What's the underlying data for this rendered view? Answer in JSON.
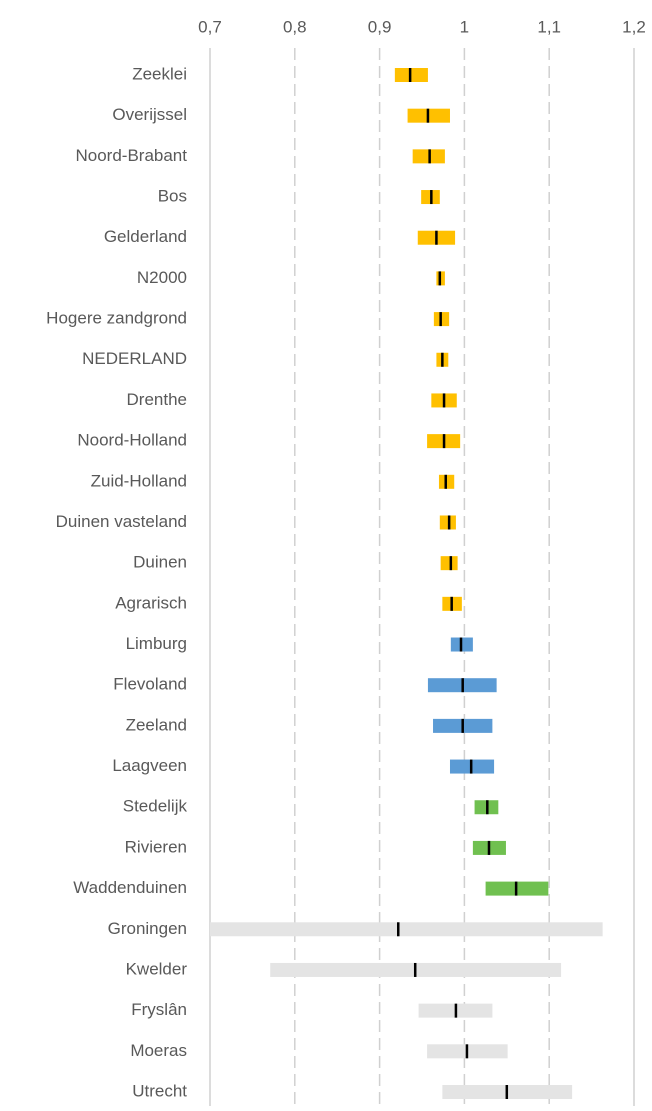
{
  "chart_data": {
    "type": "interval",
    "categories": [
      "Zeeklei",
      "Overijssel",
      "Noord-Brabant",
      "Bos",
      "Gelderland",
      "N2000",
      "Hogere zandgrond",
      "NEDERLAND",
      "Drenthe",
      "Noord-Holland",
      "Zuid-Holland",
      "Duinen vasteland",
      "Duinen",
      "Agrarisch",
      "Limburg",
      "Flevoland",
      "Zeeland",
      "Laagveen",
      "Stedelijk",
      "Rivieren",
      "Waddenduinen",
      "Groningen",
      "Kwelder",
      "Fryslân",
      "Moeras",
      "Utrecht"
    ],
    "values": [
      0.936,
      0.957,
      0.959,
      0.961,
      0.967,
      0.971,
      0.972,
      0.974,
      0.976,
      0.976,
      0.978,
      0.982,
      0.984,
      0.985,
      0.996,
      0.998,
      0.998,
      1.008,
      1.027,
      1.029,
      1.061,
      0.922,
      0.942,
      0.99,
      1.003,
      1.05
    ],
    "low": [
      0.918,
      0.933,
      0.939,
      0.949,
      0.945,
      0.967,
      0.964,
      0.967,
      0.961,
      0.956,
      0.97,
      0.971,
      0.972,
      0.974,
      0.984,
      0.957,
      0.963,
      0.983,
      1.012,
      1.01,
      1.025,
      0.7,
      0.771,
      0.946,
      0.956,
      0.974
    ],
    "high": [
      0.957,
      0.983,
      0.977,
      0.971,
      0.989,
      0.977,
      0.982,
      0.981,
      0.991,
      0.995,
      0.988,
      0.99,
      0.992,
      0.997,
      1.01,
      1.038,
      1.033,
      1.035,
      1.04,
      1.049,
      1.099,
      1.163,
      1.114,
      1.033,
      1.051,
      1.127
    ],
    "colors": [
      "#ffc000",
      "#ffc000",
      "#ffc000",
      "#ffc000",
      "#ffc000",
      "#ffc000",
      "#ffc000",
      "#ffc000",
      "#ffc000",
      "#ffc000",
      "#ffc000",
      "#ffc000",
      "#ffc000",
      "#ffc000",
      "#5b9bd5",
      "#5b9bd5",
      "#5b9bd5",
      "#5b9bd5",
      "#70c050",
      "#70c050",
      "#70c050",
      "#e4e4e4",
      "#e4e4e4",
      "#e4e4e4",
      "#e4e4e4",
      "#e4e4e4"
    ],
    "estimate_color": "#000000",
    "xlim": [
      0.7,
      1.2
    ],
    "xticks": [
      {
        "value": 0.7,
        "label": "0,7"
      },
      {
        "value": 0.8,
        "label": "0,8"
      },
      {
        "value": 0.9,
        "label": "0,9"
      },
      1,
      {
        "value": 1.1,
        "label": "1,1"
      },
      {
        "value": 1.2,
        "label": "1,2"
      }
    ],
    "grid": true
  }
}
